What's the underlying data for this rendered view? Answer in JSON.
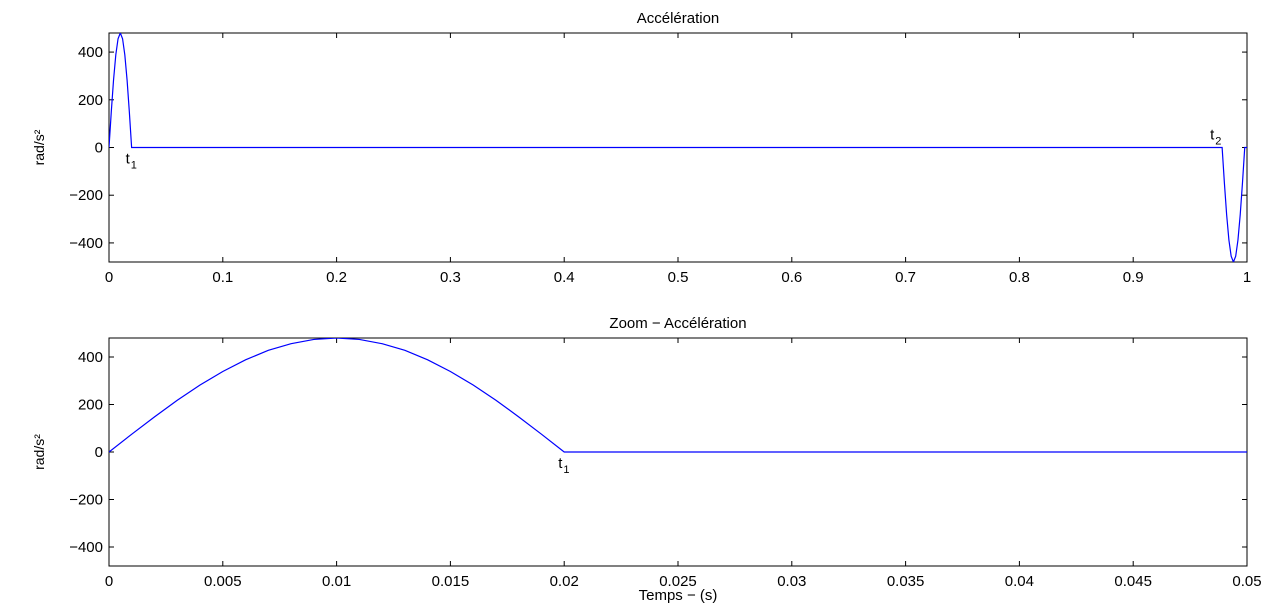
{
  "colors": {
    "series": "#0000ff",
    "axes": "#000000",
    "background": "#ffffff"
  },
  "chart_data": [
    {
      "type": "line",
      "title": "Accélération",
      "xlabel": "",
      "ylabel": "rad/s²",
      "xlim": [
        0,
        1.0063
      ],
      "ylim": [
        -480,
        480
      ],
      "xticks": [
        "0",
        "0.1",
        "0.2",
        "0.3",
        "0.4",
        "0.5",
        "0.6",
        "0.7",
        "0.8",
        "0.9",
        "1"
      ],
      "yticks": [
        "−400",
        "−200",
        "0",
        "200",
        "400"
      ],
      "grid": false,
      "series": [
        {
          "x": [
            0,
            0.002,
            0.004,
            0.006,
            0.008,
            0.01,
            0.012,
            0.014,
            0.016,
            0.018,
            0.02,
            0.9843,
            0.9863,
            0.9883,
            0.9903,
            0.9923,
            0.9943,
            0.9963,
            0.9983,
            1.0003,
            1.0023,
            1.0043,
            1.0063
          ],
          "y": [
            0,
            148,
            282,
            388,
            456,
            480,
            456,
            388,
            282,
            148,
            0,
            0,
            -148,
            -282,
            -388,
            -456,
            -480,
            -456,
            -388,
            -282,
            -148,
            0,
            0
          ]
        }
      ],
      "annotations": [
        {
          "base": "t",
          "sub": "1",
          "x": 0.02
        },
        {
          "base": "t",
          "sub": "2",
          "x": 0.9843
        }
      ]
    },
    {
      "type": "line",
      "title": "Zoom − Accélération",
      "xlabel": "Temps − (s)",
      "ylabel": "rad/s²",
      "xlim": [
        0,
        0.05
      ],
      "ylim": [
        -480,
        480
      ],
      "xticks": [
        "0",
        "0.005",
        "0.01",
        "0.015",
        "0.02",
        "0.025",
        "0.03",
        "0.035",
        "0.04",
        "0.045",
        "0.05"
      ],
      "yticks": [
        "−400",
        "−200",
        "0",
        "200",
        "400"
      ],
      "grid": false,
      "series": [
        {
          "x": [
            0,
            0.001,
            0.002,
            0.003,
            0.004,
            0.005,
            0.006,
            0.007,
            0.008,
            0.009,
            0.01,
            0.011,
            0.012,
            0.013,
            0.014,
            0.015,
            0.016,
            0.017,
            0.018,
            0.019,
            0.02,
            0.05
          ],
          "y": [
            0,
            75,
            148,
            218,
            282,
            339,
            388,
            428,
            456,
            474,
            480,
            474,
            456,
            428,
            388,
            339,
            282,
            218,
            148,
            75,
            0,
            0
          ]
        }
      ],
      "annotations": [
        {
          "base": "t",
          "sub": "1",
          "x": 0.02
        }
      ]
    }
  ]
}
